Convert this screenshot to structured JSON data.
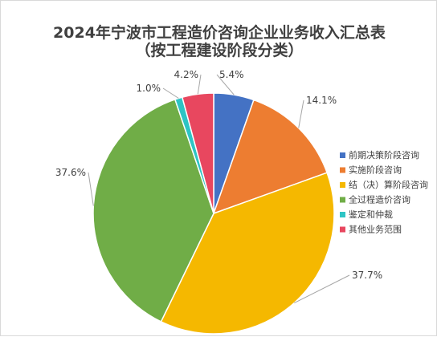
{
  "chart_data": {
    "type": "pie",
    "title": "2024年宁波市工程造价咨询企业业务收入汇总表",
    "subtitle": "（按工程建设阶段分类）",
    "categories": [
      "前期决策阶段咨询",
      "实施阶段咨询",
      "结（决）算阶段咨询",
      "全过程造价咨询",
      "鉴定和仲裁",
      "其他业务范围"
    ],
    "values": [
      5.4,
      14.1,
      37.7,
      37.6,
      1.0,
      4.2
    ],
    "data_labels": [
      "5.4%",
      "14.1%",
      "37.7%",
      "37.6%",
      "1.0%",
      "4.2%"
    ],
    "colors": [
      "#4472c4",
      "#ed7d31",
      "#f5b800",
      "#70ad47",
      "#2ec4c4",
      "#e8475f"
    ],
    "legend_position": "right"
  }
}
